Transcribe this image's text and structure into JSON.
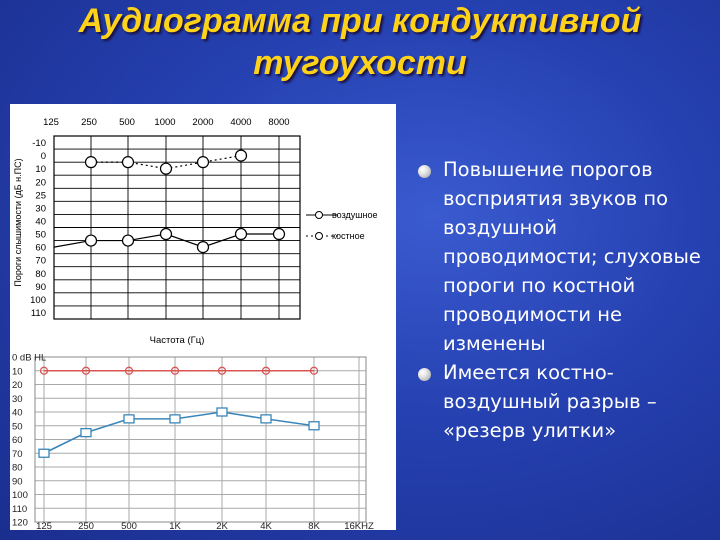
{
  "title": {
    "line1": "Аудиограмма при кондуктивной",
    "line2": "тугоухости"
  },
  "bullets": [
    "Повышение порогов восприятия звуков по воздушной проводимости; слуховые пороги по костной проводимости не изменены",
    "Имеется костно-воздушный разрыв – «резерв улитки»"
  ],
  "chart_data": [
    {
      "type": "line",
      "categories": [
        "125",
        "250",
        "500",
        "1000",
        "2000",
        "4000",
        "8000"
      ],
      "ylabel": "Пороги слышимости (дБ н.ПС)",
      "xlabel": "Частота (Гц)",
      "y_ticks": [
        "-10",
        "0",
        "10",
        "20",
        "25",
        "30",
        "40",
        "50",
        "60",
        "70",
        "80",
        "90",
        "100",
        "110"
      ],
      "ylim": [
        -10,
        110
      ],
      "grid": true,
      "legend_position": "right",
      "series": [
        {
          "name": "воздушное",
          "values": [
            60,
            55,
            55,
            50,
            60,
            50,
            50
          ]
        },
        {
          "name": "костное",
          "values": [
            null,
            5,
            5,
            10,
            5,
            0,
            null
          ]
        }
      ]
    },
    {
      "type": "line",
      "categories": [
        "125",
        "250",
        "500",
        "1K",
        "2K",
        "4K",
        "8K",
        "16KHZ"
      ],
      "y_ticks": [
        "0",
        "10",
        "20",
        "30",
        "40",
        "50",
        "60",
        "70",
        "80",
        "90",
        "100",
        "110",
        "120"
      ],
      "y_unit": "dB HL",
      "ylim": [
        0,
        120
      ],
      "grid": true,
      "series": [
        {
          "values": [
            10,
            10,
            10,
            10,
            10,
            10,
            10,
            null
          ],
          "color": "#d9534f"
        },
        {
          "values": [
            70,
            55,
            45,
            45,
            40,
            45,
            50,
            null
          ],
          "color": "#3a86b8"
        }
      ]
    }
  ]
}
